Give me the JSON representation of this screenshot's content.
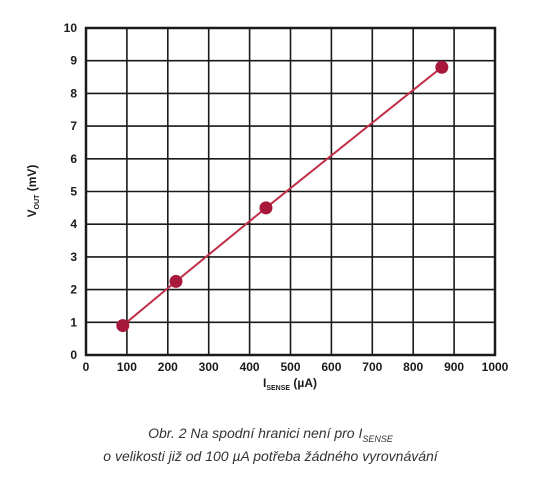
{
  "chart_data": {
    "type": "line",
    "x": [
      90,
      220,
      440,
      870
    ],
    "y": [
      0.9,
      2.25,
      4.5,
      8.8
    ],
    "xlim": [
      0,
      1000
    ],
    "ylim": [
      0,
      10
    ],
    "xticks": [
      0,
      100,
      200,
      300,
      400,
      500,
      600,
      700,
      800,
      900,
      1000
    ],
    "yticks": [
      0,
      1,
      2,
      3,
      4,
      5,
      6,
      7,
      8,
      9,
      10
    ],
    "grid": true,
    "xlabel": {
      "main": "I",
      "sub": "SENSE",
      "unit": " (µA)"
    },
    "ylabel": {
      "main": "V",
      "sub": "OUT",
      "unit": " (mV)"
    },
    "colors": {
      "line": "#c0304a",
      "marker": "#a8183a",
      "grid": "#1a1a1a"
    }
  },
  "caption": {
    "line1_prefix": "Obr. 2  Na spodní hranici není pro I",
    "line1_sub": "SENSE",
    "line2": "o velikosti již od 100 µA potřeba žádného vyrovnávání"
  }
}
